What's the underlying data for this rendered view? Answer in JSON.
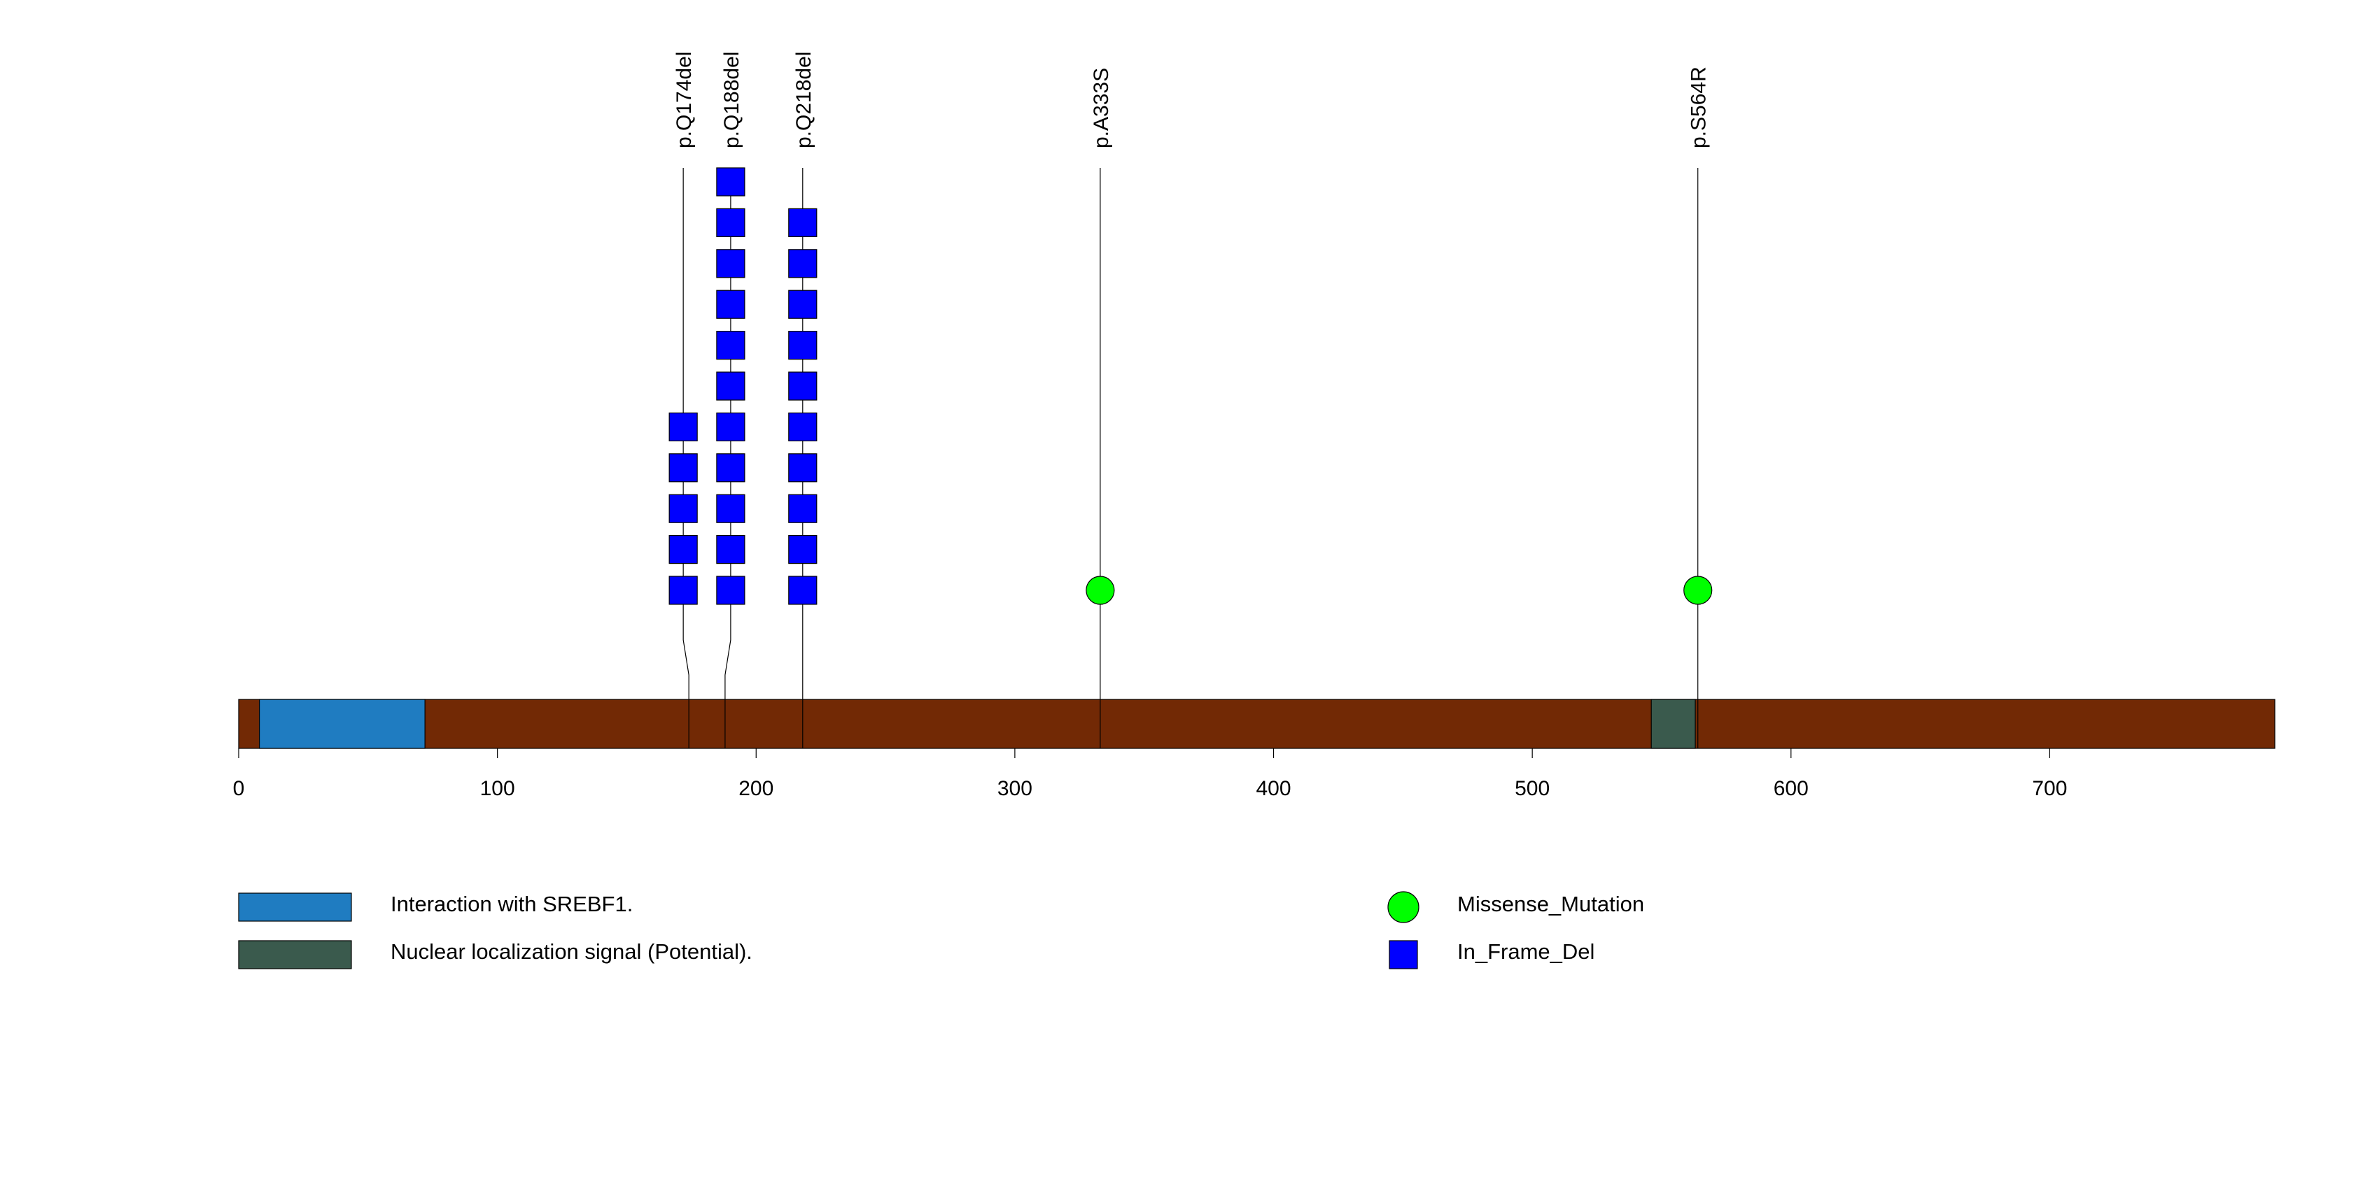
{
  "protein": {
    "length": 787,
    "backbone_color": "#722905",
    "domains": [
      {
        "name": "Interaction with SREBF1.",
        "start": 8,
        "end": 72,
        "color": "#1f7cc1"
      },
      {
        "name": "Nuclear localization signal (Potential).",
        "start": 546,
        "end": 563,
        "color": "#3a5a4d"
      }
    ]
  },
  "axis": {
    "min": 0,
    "max": 787,
    "ticks": [
      0,
      100,
      200,
      300,
      400,
      500,
      600,
      700
    ],
    "tick_labels": [
      "0",
      "100",
      "200",
      "300",
      "400",
      "500",
      "600",
      "700"
    ]
  },
  "mutations": [
    {
      "label": "p.Q174del",
      "position": 174,
      "type": "In_Frame_Del",
      "count": 5
    },
    {
      "label": "p.Q188del",
      "position": 188,
      "type": "In_Frame_Del",
      "count": 11
    },
    {
      "label": "p.Q218del",
      "position": 218,
      "type": "In_Frame_Del",
      "count": 10
    },
    {
      "label": "p.A333S",
      "position": 333,
      "type": "Missense_Mutation",
      "count": 1
    },
    {
      "label": "p.S564R",
      "position": 564,
      "type": "Missense_Mutation",
      "count": 1
    }
  ],
  "legend": {
    "domains": [
      {
        "label": "Interaction with SREBF1.",
        "color": "#1f7cc1"
      },
      {
        "label": "Nuclear localization signal (Potential).",
        "color": "#3a5a4d"
      }
    ],
    "mutation_types": [
      {
        "label": "Missense_Mutation",
        "shape": "circle",
        "color": "#00ff00"
      },
      {
        "label": "In_Frame_Del",
        "shape": "square",
        "color": "#0000ff"
      }
    ]
  }
}
